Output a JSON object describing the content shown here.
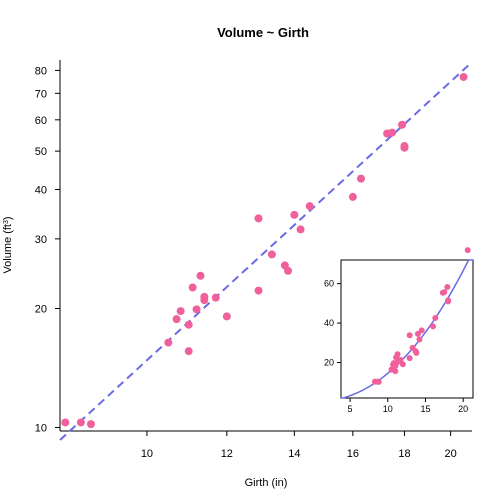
{
  "chart_data": [
    {
      "type": "scatter",
      "title": "Volume ~ Girth",
      "xlabel": "Girth (in)",
      "ylabel_text": "Volume (ft",
      "ylabel_sup": "3",
      "ylabel_close": ")",
      "x_scale": "log",
      "y_scale": "log",
      "xlim": [
        8.2,
        21.0
      ],
      "ylim": [
        9.8,
        85
      ],
      "x_ticks": [
        10,
        12,
        14,
        16,
        18,
        20
      ],
      "y_ticks": [
        10,
        20,
        30,
        40,
        50,
        60,
        70,
        80
      ],
      "grid": false,
      "point_color": "#f0609c",
      "fit_color": "#6a6ae6",
      "fit_line": {
        "style": "dashed",
        "x": [
          8.2,
          21.0
        ],
        "y": [
          9.3,
          84.0
        ]
      },
      "series": [
        {
          "x": [
            8.3,
            8.6,
            8.8,
            10.5,
            10.7,
            10.8,
            11.0,
            11.0,
            11.1,
            11.2,
            11.3,
            11.4,
            11.4,
            11.7,
            12.0,
            12.9,
            12.9,
            13.3,
            13.7,
            13.8,
            14.0,
            14.2,
            14.5,
            16.0,
            16.3,
            17.3,
            17.5,
            17.9,
            18.0,
            18.0,
            20.6
          ],
          "y": [
            10.3,
            10.3,
            10.2,
            16.4,
            18.8,
            19.7,
            15.6,
            18.2,
            22.6,
            19.9,
            24.2,
            21.0,
            21.4,
            21.3,
            19.1,
            22.2,
            33.8,
            27.4,
            25.7,
            24.9,
            34.5,
            31.7,
            36.3,
            38.3,
            42.6,
            55.4,
            55.7,
            58.3,
            51.5,
            51.0,
            77.0
          ]
        }
      ]
    },
    {
      "type": "scatter",
      "title": "",
      "x_scale": "linear",
      "y_scale": "linear",
      "xlim": [
        3.8,
        21.3
      ],
      "ylim": [
        2,
        72
      ],
      "x_ticks": [
        5,
        10,
        15,
        20
      ],
      "y_ticks": [
        20,
        40,
        60
      ],
      "grid": false,
      "point_color": "#f0609c",
      "fit_color": "#6a6ae6",
      "fit_line": {
        "style": "solid",
        "curve": "power",
        "coef": 0.0915,
        "exponent": 2.2
      },
      "series": [
        {
          "x": [
            8.3,
            8.6,
            8.8,
            10.5,
            10.7,
            10.8,
            11.0,
            11.0,
            11.1,
            11.2,
            11.3,
            11.4,
            11.4,
            11.7,
            12.0,
            12.9,
            12.9,
            13.3,
            13.7,
            13.8,
            14.0,
            14.2,
            14.5,
            16.0,
            16.3,
            17.3,
            17.5,
            17.9,
            18.0,
            18.0,
            20.6
          ],
          "y": [
            10.3,
            10.3,
            10.2,
            16.4,
            18.8,
            19.7,
            15.6,
            18.2,
            22.6,
            19.9,
            24.2,
            21.0,
            21.4,
            21.3,
            19.1,
            22.2,
            33.8,
            27.4,
            25.7,
            24.9,
            34.5,
            31.7,
            36.3,
            38.3,
            42.6,
            55.4,
            55.7,
            58.3,
            51.5,
            51.0,
            77.0
          ]
        }
      ]
    }
  ]
}
